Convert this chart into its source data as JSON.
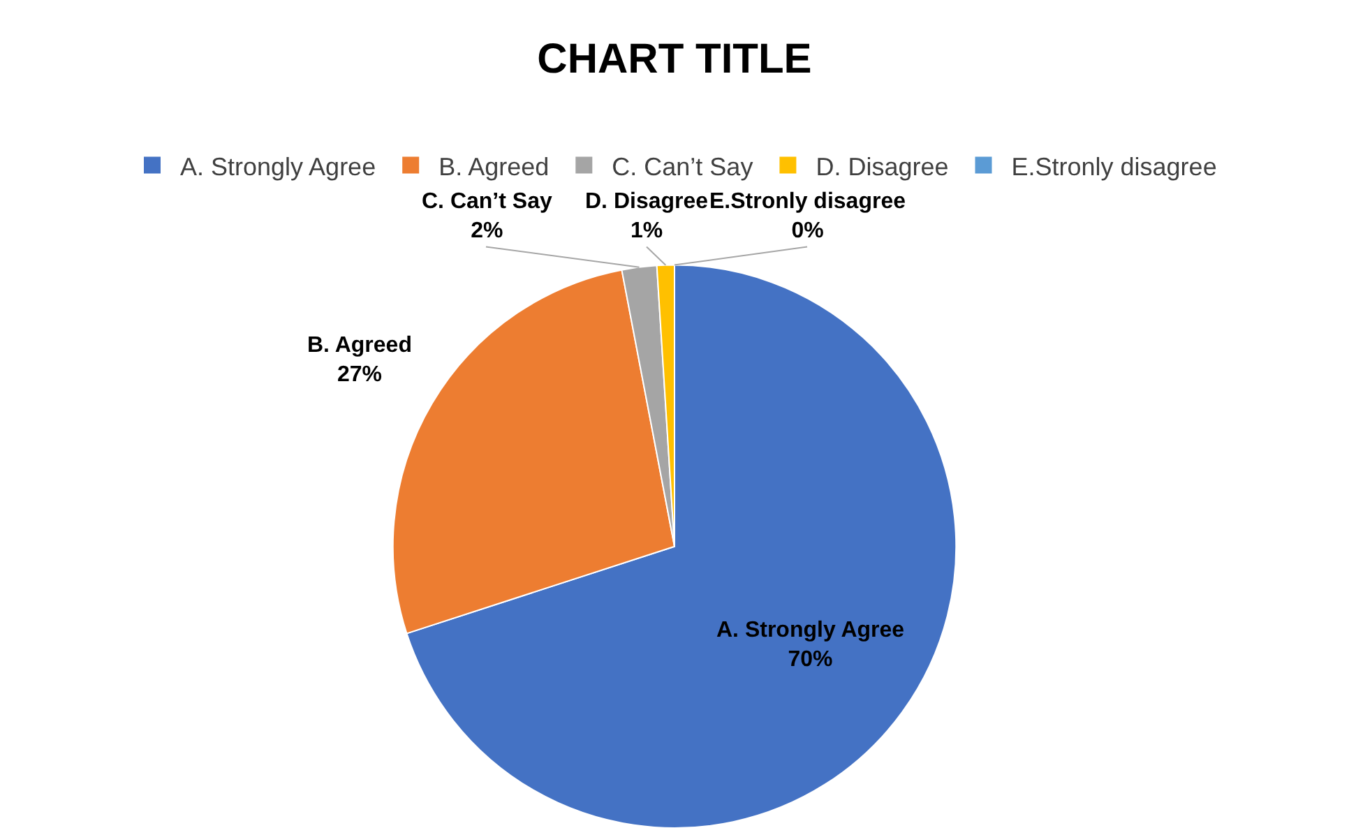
{
  "chart_data": {
    "type": "pie",
    "title": "CHART TITLE",
    "categories": [
      "A. Strongly Agree",
      "B. Agreed",
      "C. Can’t Say",
      "D. Disagree",
      "E.Stronly disagree"
    ],
    "values": [
      70,
      27,
      2,
      1,
      0
    ],
    "value_labels": [
      "70%",
      "27%",
      "2%",
      "1%",
      "0%"
    ],
    "colors": [
      "#4472c4",
      "#ed7d31",
      "#a5a5a5",
      "#ffc000",
      "#5b9bd5"
    ],
    "legend": "top"
  }
}
